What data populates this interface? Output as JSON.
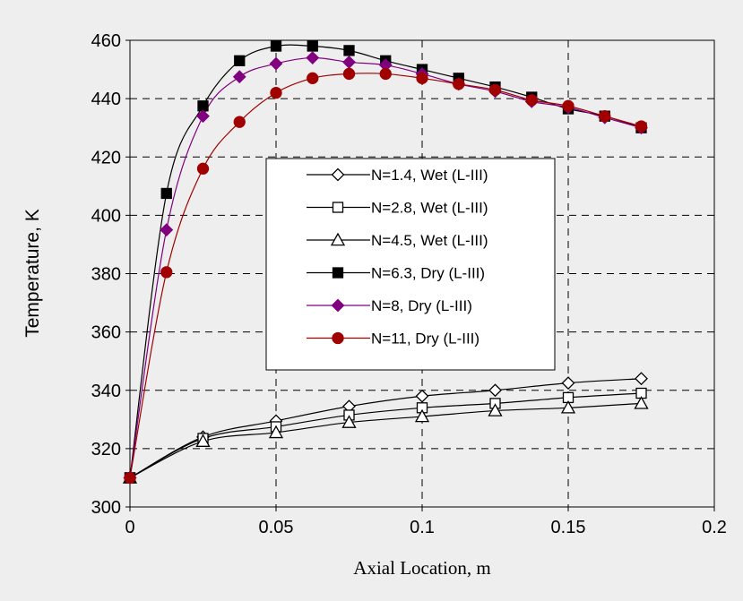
{
  "chart_data": {
    "type": "line",
    "title": "",
    "xlabel": "Axial Location, m",
    "ylabel": "Temperature, K",
    "xlim": [
      0,
      0.2
    ],
    "ylim": [
      300,
      460
    ],
    "xticks": [
      0,
      0.05,
      0.1,
      0.15,
      0.2
    ],
    "xtick_labels": [
      "0",
      "0.05",
      "0.1",
      "0.15",
      "0.2"
    ],
    "yticks": [
      300,
      320,
      340,
      360,
      380,
      400,
      420,
      440,
      460
    ],
    "ytick_labels": [
      "300",
      "320",
      "340",
      "360",
      "380",
      "400",
      "420",
      "440",
      "460"
    ],
    "grid": "dashed, both axes",
    "legend_position": "center",
    "background": "#eeeeee",
    "series": [
      {
        "name": "N=1.4, Wet (L-III)",
        "marker": "diamond-open",
        "color": "#000000",
        "x": [
          0,
          0.025,
          0.05,
          0.075,
          0.1,
          0.125,
          0.15,
          0.175
        ],
        "y": [
          310,
          324,
          329.5,
          334.5,
          338,
          340,
          342.5,
          344
        ]
      },
      {
        "name": "N=2.8, Wet (L-III)",
        "marker": "square-open",
        "color": "#000000",
        "x": [
          0,
          0.025,
          0.05,
          0.075,
          0.1,
          0.125,
          0.15,
          0.175
        ],
        "y": [
          310,
          323.5,
          327.5,
          331.5,
          334,
          335.5,
          337.5,
          339
        ]
      },
      {
        "name": "N=4.5, Wet (L-III)",
        "marker": "triangle-open",
        "color": "#000000",
        "x": [
          0,
          0.025,
          0.05,
          0.075,
          0.1,
          0.125,
          0.15,
          0.175
        ],
        "y": [
          310,
          322.5,
          325.5,
          329,
          331,
          333,
          334,
          335.5
        ]
      },
      {
        "name": "N=6.3, Dry (L-III)",
        "marker": "square-filled",
        "color": "#000000",
        "x": [
          0,
          0.0125,
          0.025,
          0.0375,
          0.05,
          0.0625,
          0.075,
          0.0875,
          0.1,
          0.1125,
          0.125,
          0.1375,
          0.15,
          0.1625,
          0.175
        ],
        "y": [
          310,
          407.5,
          437.5,
          453,
          458,
          458,
          456.5,
          453,
          450,
          447,
          444,
          440.5,
          436.5,
          434,
          430
        ]
      },
      {
        "name": "N=8, Dry (L-III)",
        "marker": "diamond-filled",
        "color": "#800080",
        "x": [
          0,
          0.0125,
          0.025,
          0.0375,
          0.05,
          0.0625,
          0.075,
          0.0875,
          0.1,
          0.1125,
          0.125,
          0.1375,
          0.15,
          0.1625,
          0.175
        ],
        "y": [
          310,
          395,
          434,
          447.5,
          452,
          454,
          452.5,
          451.5,
          448.5,
          445,
          442.5,
          439,
          437,
          433.5,
          430
        ]
      },
      {
        "name": "N=11, Dry (L-III)",
        "marker": "circle-filled",
        "color": "#a00000",
        "x": [
          0,
          0.0125,
          0.025,
          0.0375,
          0.05,
          0.0625,
          0.075,
          0.0875,
          0.1,
          0.1125,
          0.125,
          0.1375,
          0.15,
          0.1625,
          0.175
        ],
        "y": [
          310,
          380.5,
          416,
          432,
          442,
          447,
          448.5,
          448.5,
          447,
          445,
          443,
          439.5,
          437.5,
          434,
          430.5
        ]
      }
    ]
  }
}
